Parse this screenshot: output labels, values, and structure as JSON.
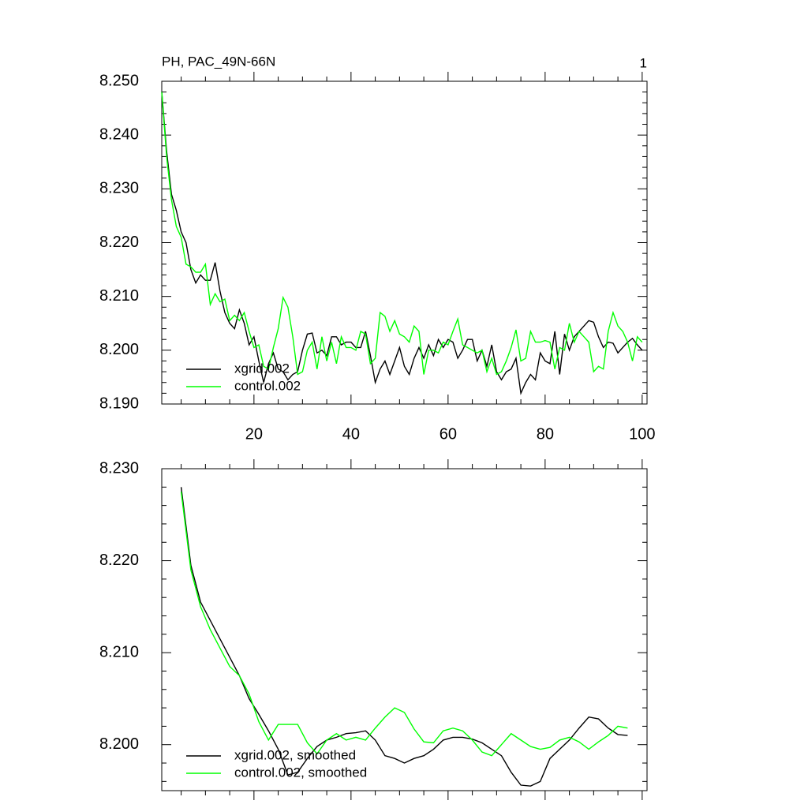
{
  "chart_data": [
    {
      "type": "line",
      "title": "PH, PAC_49N-66N",
      "corner_label": "1",
      "x": [
        1,
        2,
        3,
        4,
        5,
        6,
        7,
        8,
        9,
        10,
        11,
        12,
        13,
        14,
        15,
        16,
        17,
        18,
        19,
        20,
        21,
        22,
        23,
        24,
        25,
        26,
        27,
        28,
        29,
        30,
        31,
        32,
        33,
        34,
        35,
        36,
        37,
        38,
        39,
        40,
        41,
        42,
        43,
        44,
        45,
        46,
        47,
        48,
        49,
        50,
        51,
        52,
        53,
        54,
        55,
        56,
        57,
        58,
        59,
        60,
        61,
        62,
        63,
        64,
        65,
        66,
        67,
        68,
        69,
        70,
        71,
        72,
        73,
        74,
        75,
        76,
        77,
        78,
        79,
        80,
        81,
        82,
        83,
        84,
        85,
        86,
        87,
        88,
        89,
        90,
        91,
        92,
        93,
        94,
        95,
        96,
        97,
        98,
        99,
        100
      ],
      "series": [
        {
          "name": "xgrid.002",
          "color": "#000000",
          "values": [
            8.248,
            8.237,
            8.229,
            8.226,
            8.222,
            8.22,
            8.215,
            8.2125,
            8.214,
            8.213,
            8.213,
            8.2163,
            8.211,
            8.207,
            8.205,
            8.204,
            8.2075,
            8.205,
            8.201,
            8.2025,
            8.198,
            8.194,
            8.1975,
            8.1995,
            8.1965,
            8.196,
            8.1945,
            8.1955,
            8.196,
            8.2,
            8.203,
            8.2032,
            8.1995,
            8.2,
            8.199,
            8.2025,
            8.2025,
            8.201,
            8.2015,
            8.2015,
            8.2005,
            8.2005,
            8.2035,
            8.199,
            8.194,
            8.1965,
            8.198,
            8.1955,
            8.198,
            8.2005,
            8.197,
            8.1955,
            8.1985,
            8.2005,
            8.1985,
            8.201,
            8.199,
            8.202,
            8.2005,
            8.202,
            8.2015,
            8.1985,
            8.2,
            8.202,
            8.202,
            8.198,
            8.2,
            8.197,
            8.201,
            8.196,
            8.1945,
            8.196,
            8.1965,
            8.1985,
            8.192,
            8.194,
            8.1955,
            8.1945,
            8.1995,
            8.198,
            8.1975,
            8.2035,
            8.1955,
            8.203,
            8.2,
            8.2025,
            8.2035,
            8.2045,
            8.2055,
            8.2052,
            8.2025,
            8.2005,
            8.2015,
            8.2013,
            8.1995,
            8.2005,
            8.2015,
            8.2022,
            8.201,
            8.2
          ]
        },
        {
          "name": "control.002",
          "color": "#00ff00",
          "values": [
            8.248,
            8.236,
            8.228,
            8.223,
            8.221,
            8.216,
            8.2155,
            8.2145,
            8.2145,
            8.216,
            8.2085,
            8.2105,
            8.209,
            8.2095,
            8.2055,
            8.2065,
            8.2055,
            8.207,
            8.2035,
            8.2005,
            8.201,
            8.197,
            8.1965,
            8.2005,
            8.204,
            8.2098,
            8.208,
            8.2025,
            8.1955,
            8.196,
            8.2,
            8.2015,
            8.1965,
            8.2025,
            8.198,
            8.2015,
            8.1975,
            8.2025,
            8.2005,
            8.2005,
            8.2,
            8.2035,
            8.203,
            8.1975,
            8.1985,
            8.207,
            8.2063,
            8.2035,
            8.2055,
            8.203,
            8.2025,
            8.2015,
            8.2045,
            8.2035,
            8.1955,
            8.2,
            8.2,
            8.1995,
            8.2015,
            8.201,
            8.2035,
            8.2058,
            8.201,
            8.2005,
            8.2,
            8.1995,
            8.2,
            8.196,
            8.1985,
            8.1955,
            8.196,
            8.198,
            8.2005,
            8.2038,
            8.198,
            8.1985,
            8.2035,
            8.2015,
            8.2015,
            8.2018,
            8.2015,
            8.1965,
            8.2005,
            8.2,
            8.205,
            8.2015,
            8.2035,
            8.2025,
            8.2015,
            8.196,
            8.197,
            8.1965,
            8.2035,
            8.207,
            8.2045,
            8.2035,
            8.2015,
            8.198,
            8.2025,
            8.2015
          ]
        }
      ],
      "xlim": [
        1,
        101
      ],
      "xticks": [
        20,
        40,
        60,
        80,
        100
      ],
      "xtick_labels": true,
      "ylim": [
        8.19,
        8.25
      ],
      "yticks": [
        {
          "value": 8.19,
          "label": "8.190"
        },
        {
          "value": 8.2,
          "label": "8.200"
        },
        {
          "value": 8.21,
          "label": "8.210"
        },
        {
          "value": 8.22,
          "label": "8.220"
        },
        {
          "value": 8.23,
          "label": "8.230"
        },
        {
          "value": 8.24,
          "label": "8.240"
        },
        {
          "value": 8.25,
          "label": "8.250"
        }
      ],
      "legend": "lower left"
    },
    {
      "type": "line",
      "x": [
        5,
        7,
        9,
        11,
        13,
        15,
        17,
        19,
        21,
        23,
        25,
        27,
        29,
        31,
        33,
        35,
        37,
        39,
        41,
        43,
        45,
        47,
        49,
        51,
        53,
        55,
        57,
        59,
        61,
        63,
        65,
        67,
        69,
        71,
        73,
        75,
        77,
        79,
        81,
        83,
        85,
        87,
        89,
        91,
        93,
        95,
        97
      ],
      "series": [
        {
          "name": "xgrid.002, smoothed",
          "color": "#000000",
          "values": [
            8.228,
            8.2195,
            8.2155,
            8.2135,
            8.2115,
            8.2095,
            8.2075,
            8.205,
            8.2033,
            8.2015,
            8.1995,
            8.1967,
            8.197,
            8.1985,
            8.1998,
            8.2005,
            8.2008,
            8.2012,
            8.2013,
            8.2015,
            8.2005,
            8.1988,
            8.1985,
            8.198,
            8.1985,
            8.1988,
            8.1995,
            8.2005,
            8.2008,
            8.2008,
            8.2006,
            8.2002,
            8.1995,
            8.1988,
            8.197,
            8.1956,
            8.1955,
            8.196,
            8.1985,
            8.1995,
            8.2005,
            8.2018,
            8.203,
            8.2028,
            8.2018,
            8.2011,
            8.201
          ]
        },
        {
          "name": "control.002, smoothed",
          "color": "#00ff00",
          "values": [
            8.2275,
            8.219,
            8.215,
            8.2125,
            8.2105,
            8.2085,
            8.2075,
            8.2055,
            8.2025,
            8.2005,
            8.2022,
            8.2022,
            8.2022,
            8.2002,
            8.199,
            8.2005,
            8.2012,
            8.2005,
            8.2008,
            8.2005,
            8.2018,
            8.203,
            8.204,
            8.2035,
            8.2017,
            8.2003,
            8.2002,
            8.2015,
            8.2018,
            8.2015,
            8.2005,
            8.1992,
            8.1988,
            8.2,
            8.2012,
            8.2005,
            8.1998,
            8.1995,
            8.1997,
            8.2005,
            8.2008,
            8.2003,
            8.1995,
            8.2003,
            8.201,
            8.202,
            8.2018
          ]
        }
      ],
      "xlim": [
        1,
        101
      ],
      "xticks": [
        20,
        40,
        60,
        80,
        100
      ],
      "xtick_labels": false,
      "ylim": [
        8.195,
        8.23
      ],
      "yticks": [
        {
          "value": 8.2,
          "label": "8.200"
        },
        {
          "value": 8.21,
          "label": "8.210"
        },
        {
          "value": 8.22,
          "label": "8.220"
        },
        {
          "value": 8.23,
          "label": "8.230"
        }
      ],
      "legend": "lower left"
    }
  ]
}
